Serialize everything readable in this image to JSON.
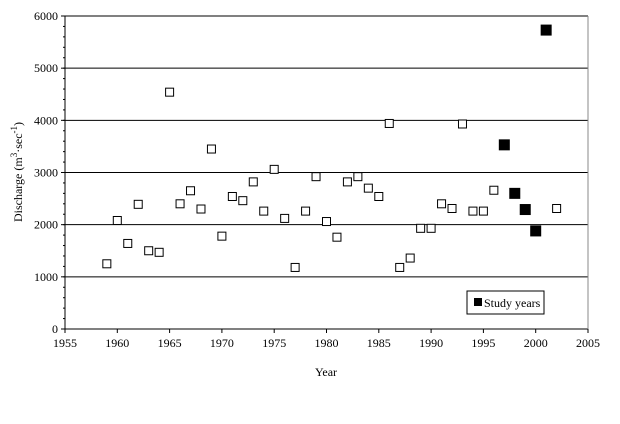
{
  "chart_data": {
    "type": "scatter",
    "title": "",
    "xlabel": "Year",
    "ylabel_parts": {
      "main": "Discharge (m",
      "sup1": "3",
      "mid": "·sec",
      "sup2": "-1",
      "end": ")"
    },
    "xlim": [
      1955,
      2005
    ],
    "ylim": [
      0,
      6000
    ],
    "xticks": [
      "1955",
      "1960",
      "1965",
      "1970",
      "1975",
      "1980",
      "1985",
      "1990",
      "1995",
      "2000",
      "2005"
    ],
    "yticks": [
      "0",
      "1000",
      "2000",
      "3000",
      "4000",
      "5000",
      "6000"
    ],
    "grid": "horizontal",
    "legend_position": "bottom-right",
    "series": [
      {
        "name": "",
        "marker": "open-square",
        "color": "#000000",
        "x": [
          1959,
          1960,
          1961,
          1962,
          1963,
          1964,
          1965,
          1966,
          1967,
          1968,
          1969,
          1970,
          1971,
          1972,
          1973,
          1974,
          1975,
          1976,
          1977,
          1978,
          1979,
          1980,
          1981,
          1982,
          1983,
          1984,
          1985,
          1986,
          1987,
          1988,
          1989,
          1990,
          1991,
          1992,
          1993,
          1994,
          1995,
          1996,
          2002
        ],
        "y": [
          1250,
          2080,
          1640,
          2390,
          1500,
          1470,
          4540,
          2400,
          2650,
          2300,
          3450,
          1780,
          2540,
          2460,
          2820,
          2260,
          3060,
          2120,
          1180,
          2260,
          2920,
          2060,
          1760,
          2820,
          2920,
          2700,
          2540,
          3940,
          1180,
          1360,
          1930,
          1930,
          2400,
          2310,
          3930,
          2260,
          2260,
          2660,
          2310
        ]
      },
      {
        "name": "Study years",
        "marker": "filled-square",
        "color": "#000000",
        "x": [
          1997,
          1998,
          1999,
          2000,
          2001
        ],
        "y": [
          3530,
          2600,
          2290,
          1880,
          5730
        ]
      }
    ]
  }
}
